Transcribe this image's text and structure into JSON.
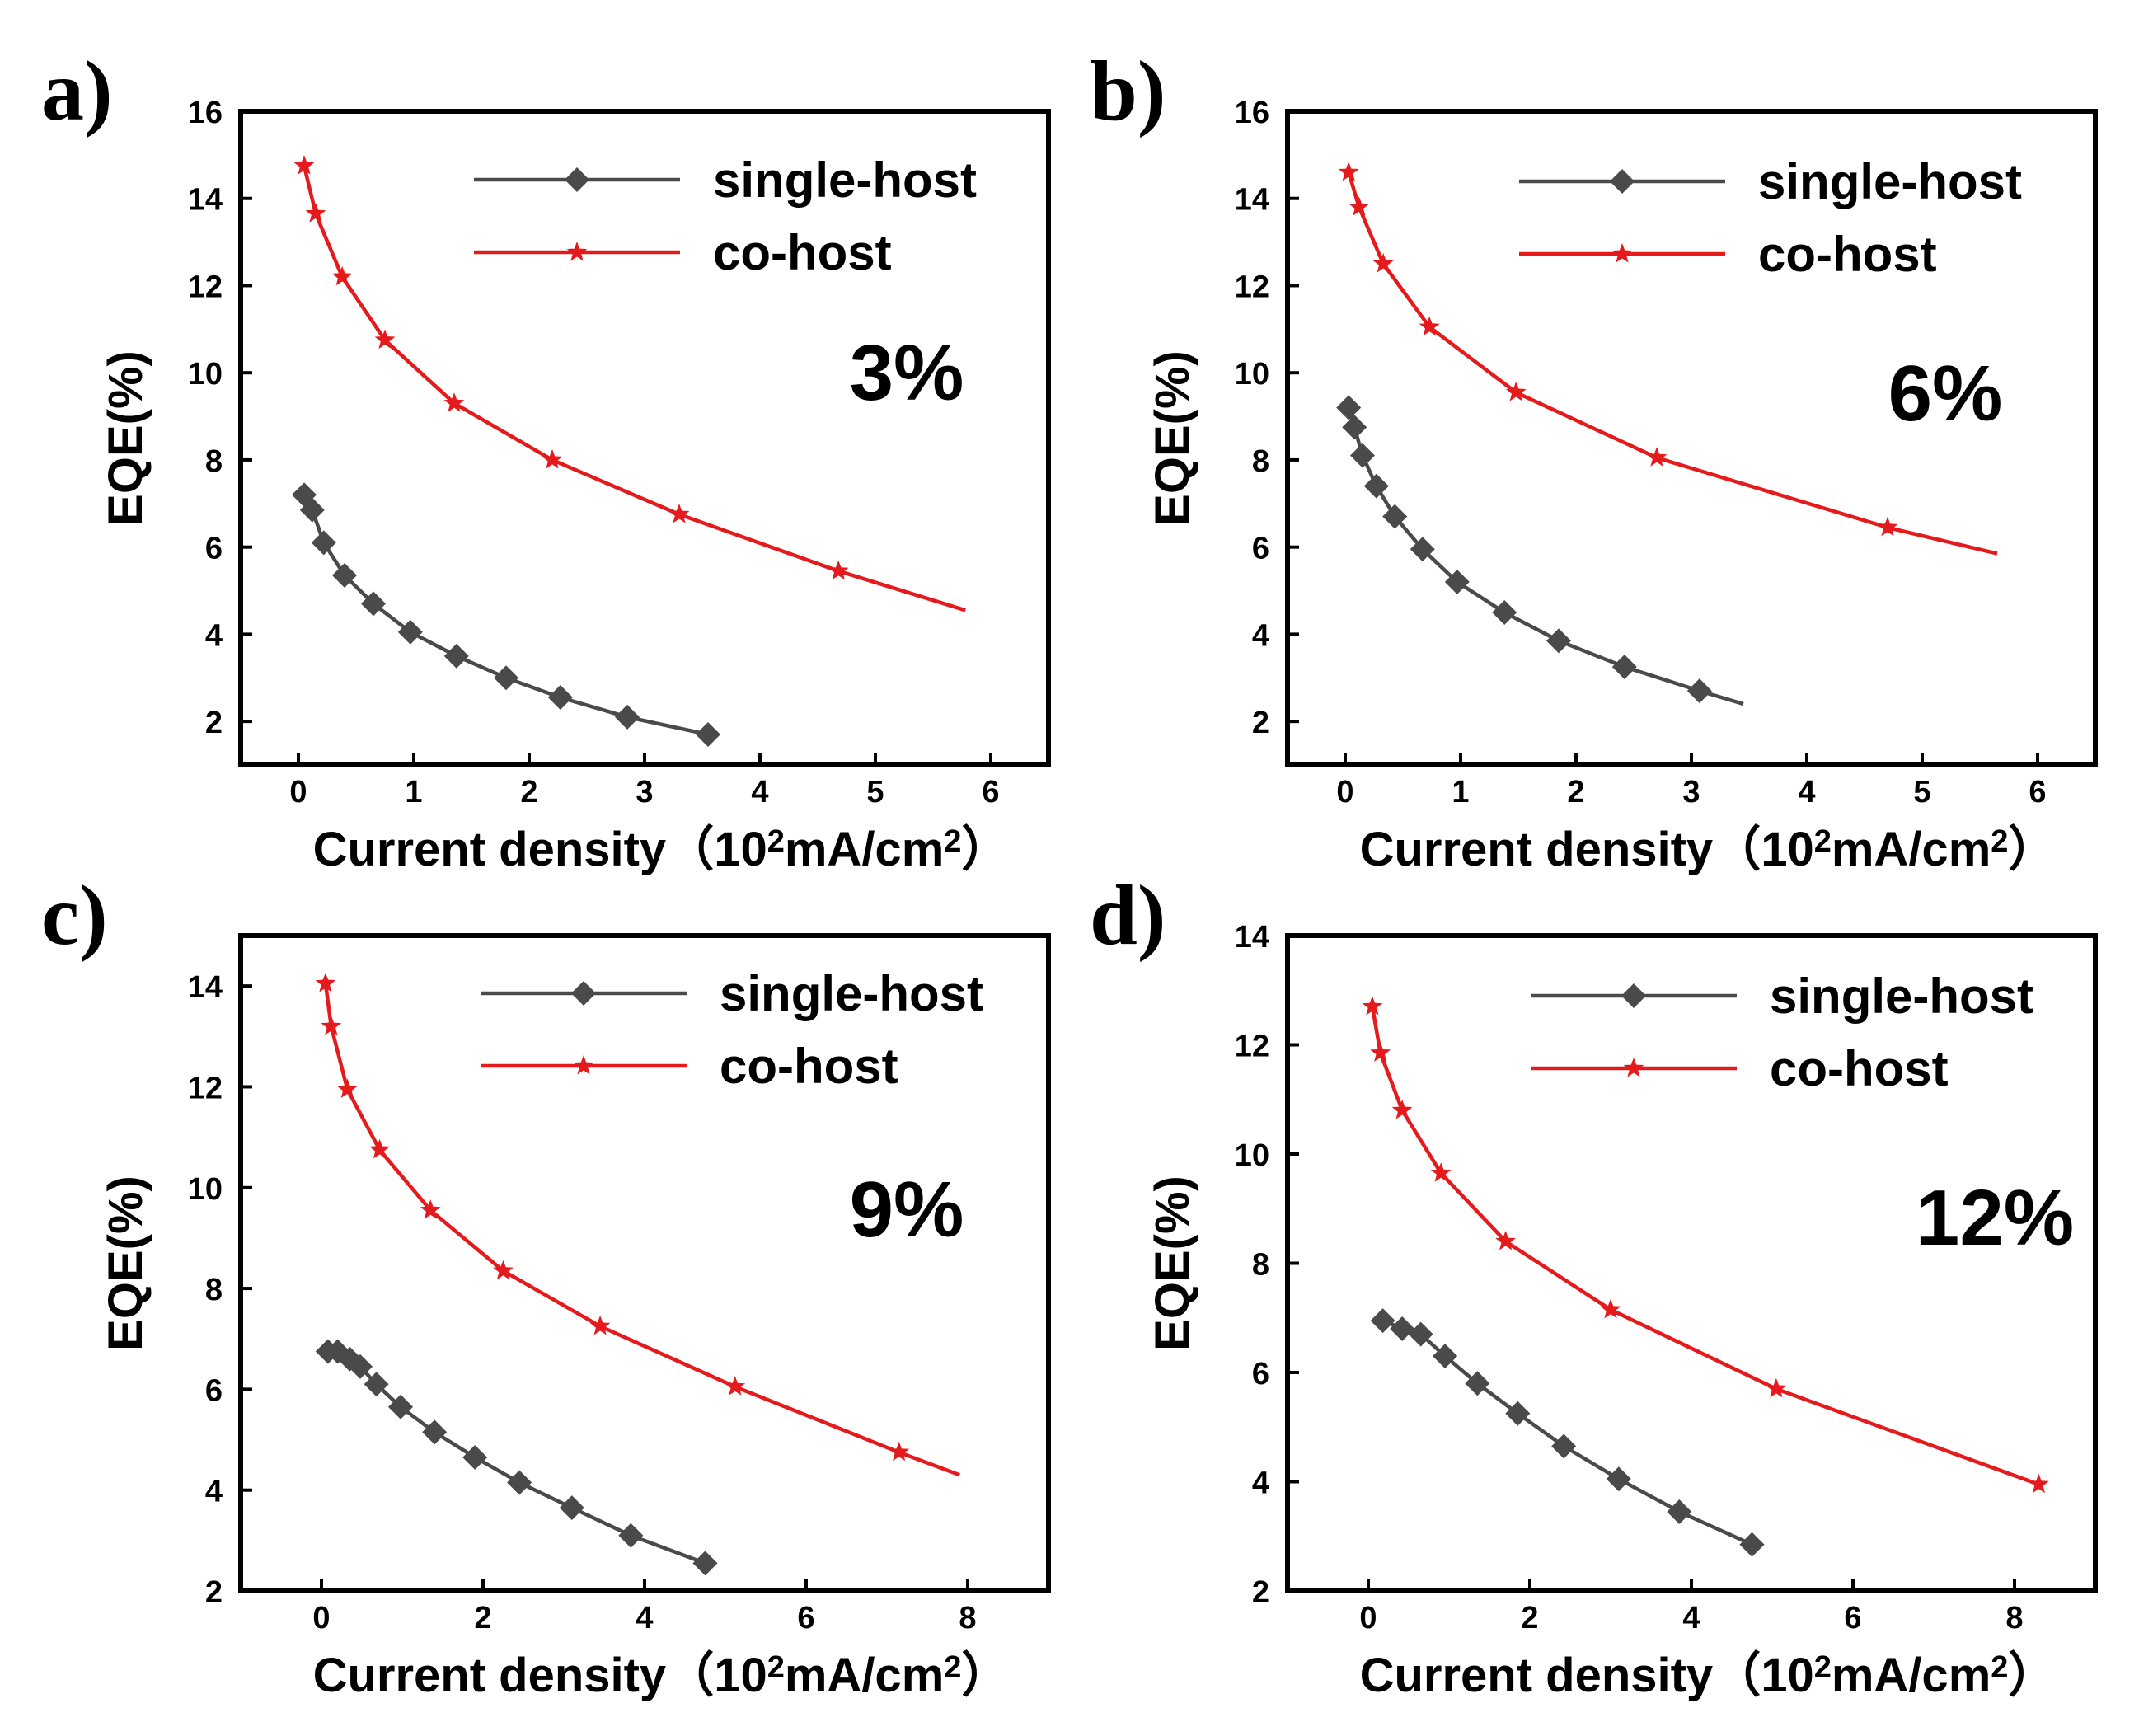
{
  "colors": {
    "single": "#4a4a4a",
    "co": "#e41a1c"
  },
  "chart_data": [
    {
      "type": "line",
      "panel_label": "a)",
      "annotation": "3%",
      "xlabel": "Current density（10",
      "xlabel_sup": "2",
      "xlabel_unit": "mA/cm",
      "xlabel_sup2": "2",
      "xlabel_end": "）",
      "ylabel": "EQE(%)",
      "xlim": [
        -0.5,
        6.5
      ],
      "ylim": [
        1,
        16
      ],
      "xticks": [
        0,
        1,
        2,
        3,
        4,
        5,
        6
      ],
      "yticks": [
        2,
        4,
        6,
        8,
        10,
        12,
        14,
        16
      ],
      "xtick_labels": [
        "0",
        "1",
        "2",
        "3",
        "4",
        "5",
        "6"
      ],
      "ytick_labels": [
        "2",
        "4",
        "6",
        "8",
        "10",
        "12",
        "14",
        "16"
      ],
      "legend": [
        "single-host",
        "co-host"
      ],
      "series": [
        {
          "name": "single-host",
          "marker": "diamond",
          "x": [
            0.05,
            0.12,
            0.22,
            0.4,
            0.65,
            0.97,
            1.37,
            1.8,
            2.27,
            2.85,
            3.55
          ],
          "y": [
            7.2,
            6.85,
            6.1,
            5.35,
            4.7,
            4.05,
            3.5,
            3.0,
            2.55,
            2.1,
            1.7
          ]
        },
        {
          "name": "co-host",
          "marker": "star",
          "x": [
            0.05,
            0.15,
            0.38,
            0.75,
            1.35,
            2.2,
            3.3,
            4.68
          ],
          "y": [
            14.75,
            13.65,
            12.2,
            10.75,
            9.3,
            8.0,
            6.75,
            5.45
          ],
          "line_end": [
            5.78,
            4.55
          ]
        }
      ]
    },
    {
      "type": "line",
      "panel_label": "b)",
      "annotation": "6%",
      "xlabel": "Current density（10",
      "xlabel_sup": "2",
      "xlabel_unit": "mA/cm",
      "xlabel_sup2": "2",
      "xlabel_end": "）",
      "ylabel": "EQE(%)",
      "xlim": [
        -0.5,
        6.5
      ],
      "ylim": [
        1,
        16
      ],
      "xticks": [
        0,
        1,
        2,
        3,
        4,
        5,
        6
      ],
      "yticks": [
        2,
        4,
        6,
        8,
        10,
        12,
        14,
        16
      ],
      "xtick_labels": [
        "0",
        "1",
        "2",
        "3",
        "4",
        "5",
        "6"
      ],
      "ytick_labels": [
        "2",
        "4",
        "6",
        "8",
        "10",
        "12",
        "14",
        "16"
      ],
      "legend": [
        "single-host",
        "co-host"
      ],
      "series": [
        {
          "name": "single-host",
          "marker": "diamond",
          "x": [
            0.03,
            0.08,
            0.15,
            0.27,
            0.43,
            0.67,
            0.97,
            1.38,
            1.85,
            2.42,
            3.07
          ],
          "y": [
            9.2,
            8.75,
            8.1,
            7.4,
            6.7,
            5.95,
            5.2,
            4.5,
            3.85,
            3.25,
            2.7
          ],
          "line_end": [
            3.45,
            2.4
          ]
        },
        {
          "name": "co-host",
          "marker": "star",
          "x": [
            0.03,
            0.12,
            0.33,
            0.73,
            1.48,
            2.7,
            4.7
          ],
          "y": [
            14.6,
            13.8,
            12.5,
            11.05,
            9.55,
            8.05,
            6.45
          ],
          "line_end": [
            5.65,
            5.85
          ]
        }
      ]
    },
    {
      "type": "line",
      "panel_label": "c)",
      "annotation": "9%",
      "xlabel": "Current density（10",
      "xlabel_sup": "2",
      "xlabel_unit": "mA/cm",
      "xlabel_sup2": "2",
      "xlabel_end": "）",
      "ylabel": "EQE(%)",
      "xlim": [
        -1,
        9
      ],
      "ylim": [
        2,
        15
      ],
      "xticks": [
        0,
        2,
        4,
        6,
        8
      ],
      "yticks": [
        2,
        4,
        6,
        8,
        10,
        12,
        14
      ],
      "xtick_labels": [
        "0",
        "2",
        "4",
        "6",
        "8"
      ],
      "ytick_labels": [
        "2",
        "4",
        "6",
        "8",
        "10",
        "12",
        "14"
      ],
      "legend": [
        "single-host",
        "co-host"
      ],
      "series": [
        {
          "name": "single-host",
          "marker": "diamond",
          "x": [
            0.08,
            0.2,
            0.35,
            0.48,
            0.68,
            0.98,
            1.4,
            1.9,
            2.45,
            3.1,
            3.83,
            4.75
          ],
          "y": [
            6.75,
            6.75,
            6.6,
            6.45,
            6.1,
            5.65,
            5.15,
            4.65,
            4.15,
            3.65,
            3.1,
            2.55
          ]
        },
        {
          "name": "co-host",
          "marker": "star",
          "x": [
            0.05,
            0.12,
            0.32,
            0.72,
            1.35,
            2.25,
            3.45,
            5.12,
            7.15
          ],
          "y": [
            14.05,
            13.2,
            11.95,
            10.75,
            9.55,
            8.35,
            7.25,
            6.05,
            4.75
          ],
          "line_end": [
            7.9,
            4.3
          ]
        }
      ]
    },
    {
      "type": "line",
      "panel_label": "d)",
      "annotation": "12%",
      "xlabel": "Current density（10",
      "xlabel_sup": "2",
      "xlabel_unit": "mA/cm",
      "xlabel_sup2": "2",
      "xlabel_end": "）",
      "ylabel": "EQE(%)",
      "xlim": [
        -1,
        9
      ],
      "ylim": [
        2,
        14
      ],
      "xticks": [
        0,
        2,
        4,
        6,
        8
      ],
      "yticks": [
        2,
        4,
        6,
        8,
        10,
        12,
        14
      ],
      "xtick_labels": [
        "0",
        "2",
        "4",
        "6",
        "8"
      ],
      "ytick_labels": [
        "2",
        "4",
        "6",
        "8",
        "10",
        "12",
        "14"
      ],
      "legend": [
        "single-host",
        "co-host"
      ],
      "series": [
        {
          "name": "single-host",
          "marker": "diamond",
          "x": [
            0.18,
            0.42,
            0.65,
            0.95,
            1.35,
            1.85,
            2.42,
            3.1,
            3.85,
            4.75
          ],
          "y": [
            6.95,
            6.8,
            6.7,
            6.3,
            5.8,
            5.25,
            4.65,
            4.05,
            3.45,
            2.85
          ]
        },
        {
          "name": "co-host",
          "marker": "star",
          "x": [
            0.05,
            0.15,
            0.42,
            0.9,
            1.7,
            3.0,
            5.05,
            8.3
          ],
          "y": [
            12.7,
            11.85,
            10.8,
            9.65,
            8.4,
            7.15,
            5.7,
            3.95
          ]
        }
      ]
    }
  ]
}
